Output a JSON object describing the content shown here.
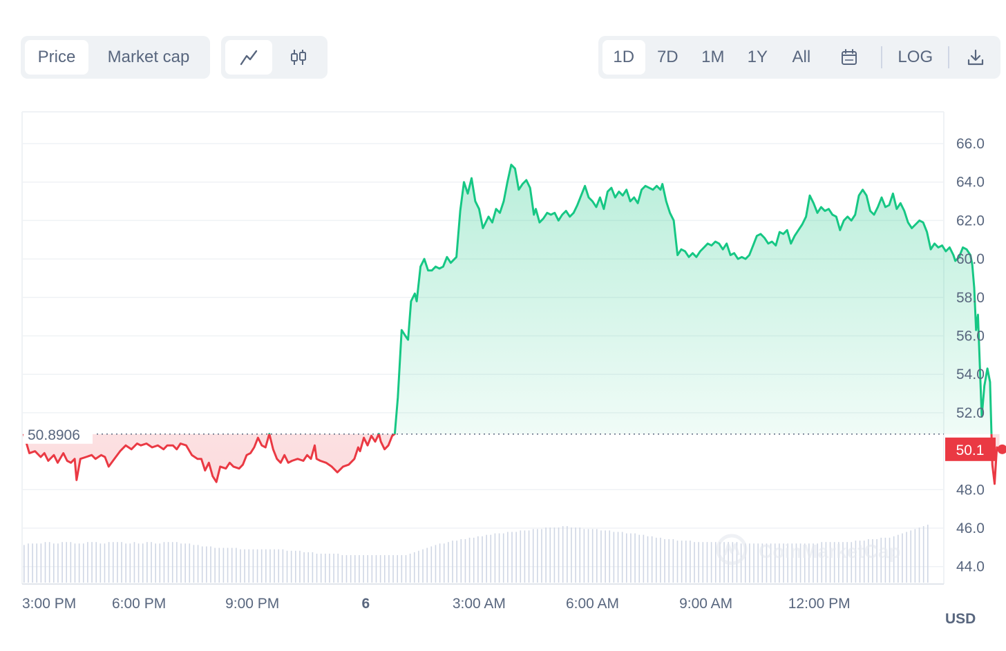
{
  "toolbar": {
    "metric_tabs": [
      "Price",
      "Market cap"
    ],
    "chart_type_icons": [
      "line-chart-icon",
      "candlestick-icon"
    ],
    "range_tabs": [
      "1D",
      "7D",
      "1M",
      "1Y",
      "All"
    ],
    "calendar_icon": "calendar-icon",
    "log_label": "LOG",
    "download_icon": "download-icon"
  },
  "currency_label": "USD",
  "watermark": "CoinMarketCap",
  "colors": {
    "up": "#16c784",
    "down": "#ea3943",
    "grid": "#eff2f5",
    "axis_text": "#58667e",
    "volume": "#cfd6e4"
  },
  "chart_data": {
    "type": "area",
    "title": "",
    "xlabel": "",
    "ylabel": "",
    "ylim": [
      43.2,
      67.7
    ],
    "grid": true,
    "scale": "linear",
    "y_ticks": [
      "66.0",
      "64.0",
      "62.0",
      "60.0",
      "58.0",
      "56.0",
      "54.0",
      "52.0",
      "48.0",
      "46.0",
      "44.0"
    ],
    "x_ticks": [
      {
        "label": "3:00 PM",
        "h": 0
      },
      {
        "label": "6:00 PM",
        "h": 3
      },
      {
        "label": "9:00 PM",
        "h": 6
      },
      {
        "label": "6",
        "h": 9
      },
      {
        "label": "3:00 AM",
        "h": 12
      },
      {
        "label": "6:00 AM",
        "h": 15
      },
      {
        "label": "9:00 AM",
        "h": 18
      },
      {
        "label": "12:00 PM",
        "h": 21
      }
    ],
    "baseline": {
      "value": 50.8906,
      "label": "50.8906"
    },
    "current": {
      "value": 50.1,
      "label": "50.1"
    },
    "series": [
      {
        "name": "Price",
        "points": [
          [
            -0.05,
            50.9
          ],
          [
            0.1,
            49.9
          ],
          [
            0.25,
            50.0
          ],
          [
            0.4,
            49.7
          ],
          [
            0.5,
            49.9
          ],
          [
            0.6,
            49.5
          ],
          [
            0.75,
            49.8
          ],
          [
            0.85,
            49.4
          ],
          [
            1.0,
            49.9
          ],
          [
            1.1,
            49.5
          ],
          [
            1.2,
            49.4
          ],
          [
            1.3,
            49.6
          ],
          [
            1.35,
            48.5
          ],
          [
            1.45,
            49.6
          ],
          [
            1.6,
            49.7
          ],
          [
            1.75,
            49.8
          ],
          [
            1.85,
            49.6
          ],
          [
            2.0,
            49.8
          ],
          [
            2.1,
            49.7
          ],
          [
            2.2,
            49.2
          ],
          [
            2.35,
            49.6
          ],
          [
            2.5,
            50.0
          ],
          [
            2.65,
            50.3
          ],
          [
            2.8,
            50.1
          ],
          [
            2.95,
            50.4
          ],
          [
            3.05,
            50.3
          ],
          [
            3.2,
            50.4
          ],
          [
            3.35,
            50.2
          ],
          [
            3.5,
            50.3
          ],
          [
            3.65,
            50.1
          ],
          [
            3.75,
            50.3
          ],
          [
            3.9,
            50.3
          ],
          [
            4.0,
            50.1
          ],
          [
            4.1,
            50.4
          ],
          [
            4.25,
            50.3
          ],
          [
            4.4,
            49.8
          ],
          [
            4.55,
            49.6
          ],
          [
            4.65,
            49.6
          ],
          [
            4.75,
            49.0
          ],
          [
            4.85,
            49.4
          ],
          [
            4.95,
            48.7
          ],
          [
            5.05,
            48.4
          ],
          [
            5.15,
            49.2
          ],
          [
            5.3,
            49.1
          ],
          [
            5.4,
            49.4
          ],
          [
            5.5,
            49.2
          ],
          [
            5.65,
            49.1
          ],
          [
            5.75,
            49.3
          ],
          [
            5.85,
            49.8
          ],
          [
            5.95,
            49.9
          ],
          [
            6.05,
            50.2
          ],
          [
            6.15,
            50.7
          ],
          [
            6.25,
            50.3
          ],
          [
            6.35,
            50.2
          ],
          [
            6.45,
            50.9
          ],
          [
            6.55,
            50.1
          ],
          [
            6.65,
            49.6
          ],
          [
            6.75,
            49.4
          ],
          [
            6.85,
            49.8
          ],
          [
            6.95,
            49.4
          ],
          [
            7.05,
            49.5
          ],
          [
            7.2,
            49.6
          ],
          [
            7.35,
            49.5
          ],
          [
            7.45,
            49.8
          ],
          [
            7.55,
            49.6
          ],
          [
            7.65,
            50.3
          ],
          [
            7.7,
            49.6
          ],
          [
            7.8,
            49.5
          ],
          [
            7.95,
            49.4
          ],
          [
            8.1,
            49.2
          ],
          [
            8.25,
            48.9
          ],
          [
            8.4,
            49.2
          ],
          [
            8.55,
            49.3
          ],
          [
            8.7,
            49.6
          ],
          [
            8.8,
            50.2
          ],
          [
            8.85,
            50.0
          ],
          [
            8.95,
            50.7
          ],
          [
            9.05,
            50.3
          ],
          [
            9.15,
            50.8
          ],
          [
            9.25,
            50.5
          ],
          [
            9.35,
            50.9
          ],
          [
            9.4,
            50.5
          ],
          [
            9.5,
            50.1
          ],
          [
            9.6,
            50.3
          ],
          [
            9.7,
            50.8
          ],
          [
            9.77,
            50.9
          ],
          [
            9.85,
            52.8
          ],
          [
            9.95,
            56.3
          ],
          [
            10.05,
            56.0
          ],
          [
            10.12,
            55.8
          ],
          [
            10.2,
            57.8
          ],
          [
            10.3,
            58.2
          ],
          [
            10.35,
            57.8
          ],
          [
            10.45,
            59.6
          ],
          [
            10.55,
            60.0
          ],
          [
            10.65,
            59.4
          ],
          [
            10.75,
            59.4
          ],
          [
            10.85,
            59.6
          ],
          [
            10.95,
            59.5
          ],
          [
            11.05,
            59.6
          ],
          [
            11.15,
            60.1
          ],
          [
            11.25,
            59.8
          ],
          [
            11.4,
            60.1
          ],
          [
            11.5,
            62.5
          ],
          [
            11.6,
            64.0
          ],
          [
            11.7,
            63.4
          ],
          [
            11.8,
            64.2
          ],
          [
            11.9,
            63.0
          ],
          [
            12.0,
            62.6
          ],
          [
            12.1,
            61.6
          ],
          [
            12.25,
            62.2
          ],
          [
            12.35,
            61.9
          ],
          [
            12.45,
            62.6
          ],
          [
            12.55,
            62.4
          ],
          [
            12.65,
            63.0
          ],
          [
            12.75,
            64.0
          ],
          [
            12.85,
            64.9
          ],
          [
            12.95,
            64.7
          ],
          [
            13.05,
            63.6
          ],
          [
            13.15,
            63.9
          ],
          [
            13.25,
            64.1
          ],
          [
            13.35,
            63.7
          ],
          [
            13.45,
            62.3
          ],
          [
            13.5,
            62.6
          ],
          [
            13.6,
            61.9
          ],
          [
            13.7,
            62.1
          ],
          [
            13.8,
            62.4
          ],
          [
            13.9,
            62.3
          ],
          [
            14.0,
            62.4
          ],
          [
            14.1,
            62.0
          ],
          [
            14.2,
            62.3
          ],
          [
            14.3,
            62.5
          ],
          [
            14.4,
            62.2
          ],
          [
            14.5,
            62.4
          ],
          [
            14.6,
            62.8
          ],
          [
            14.7,
            63.3
          ],
          [
            14.8,
            63.8
          ],
          [
            14.9,
            63.2
          ],
          [
            15.0,
            63.0
          ],
          [
            15.1,
            62.7
          ],
          [
            15.2,
            63.2
          ],
          [
            15.3,
            62.6
          ],
          [
            15.4,
            63.5
          ],
          [
            15.5,
            63.7
          ],
          [
            15.6,
            63.2
          ],
          [
            15.7,
            63.5
          ],
          [
            15.8,
            63.3
          ],
          [
            15.9,
            63.6
          ],
          [
            16.0,
            63.0
          ],
          [
            16.1,
            63.2
          ],
          [
            16.2,
            62.9
          ],
          [
            16.3,
            63.6
          ],
          [
            16.4,
            63.8
          ],
          [
            16.5,
            63.7
          ],
          [
            16.6,
            63.6
          ],
          [
            16.7,
            63.8
          ],
          [
            16.8,
            63.6
          ],
          [
            16.85,
            63.9
          ],
          [
            16.95,
            63.0
          ],
          [
            17.05,
            62.4
          ],
          [
            17.15,
            62.0
          ],
          [
            17.25,
            60.2
          ],
          [
            17.35,
            60.5
          ],
          [
            17.45,
            60.4
          ],
          [
            17.55,
            60.1
          ],
          [
            17.65,
            60.3
          ],
          [
            17.75,
            60.1
          ],
          [
            17.85,
            60.4
          ],
          [
            17.95,
            60.6
          ],
          [
            18.05,
            60.8
          ],
          [
            18.15,
            60.7
          ],
          [
            18.25,
            60.9
          ],
          [
            18.35,
            60.8
          ],
          [
            18.45,
            60.5
          ],
          [
            18.55,
            60.8
          ],
          [
            18.65,
            60.2
          ],
          [
            18.75,
            60.3
          ],
          [
            18.85,
            60.0
          ],
          [
            18.95,
            60.1
          ],
          [
            19.05,
            60.0
          ],
          [
            19.15,
            60.2
          ],
          [
            19.25,
            60.7
          ],
          [
            19.35,
            61.2
          ],
          [
            19.45,
            61.3
          ],
          [
            19.55,
            61.1
          ],
          [
            19.65,
            60.8
          ],
          [
            19.75,
            60.9
          ],
          [
            19.85,
            60.7
          ],
          [
            19.95,
            61.4
          ],
          [
            20.05,
            61.3
          ],
          [
            20.15,
            61.5
          ],
          [
            20.25,
            60.8
          ],
          [
            20.35,
            61.2
          ],
          [
            20.45,
            61.5
          ],
          [
            20.55,
            61.8
          ],
          [
            20.65,
            62.2
          ],
          [
            20.75,
            63.3
          ],
          [
            20.85,
            62.9
          ],
          [
            20.95,
            62.4
          ],
          [
            21.05,
            62.7
          ],
          [
            21.15,
            62.5
          ],
          [
            21.25,
            62.6
          ],
          [
            21.35,
            62.3
          ],
          [
            21.45,
            62.2
          ],
          [
            21.55,
            61.5
          ],
          [
            21.65,
            62.0
          ],
          [
            21.75,
            62.2
          ],
          [
            21.85,
            62.0
          ],
          [
            21.95,
            62.3
          ],
          [
            22.05,
            63.3
          ],
          [
            22.15,
            63.6
          ],
          [
            22.25,
            63.3
          ],
          [
            22.35,
            62.5
          ],
          [
            22.45,
            62.3
          ],
          [
            22.55,
            62.7
          ],
          [
            22.65,
            63.2
          ],
          [
            22.75,
            62.7
          ],
          [
            22.85,
            62.8
          ],
          [
            22.95,
            63.4
          ],
          [
            23.05,
            62.6
          ],
          [
            23.15,
            62.9
          ],
          [
            23.25,
            62.5
          ],
          [
            23.35,
            61.9
          ],
          [
            23.45,
            61.6
          ],
          [
            23.55,
            61.8
          ],
          [
            23.65,
            62.0
          ],
          [
            23.75,
            61.9
          ],
          [
            23.85,
            61.4
          ],
          [
            23.95,
            60.5
          ],
          [
            24.05,
            60.8
          ],
          [
            24.15,
            60.6
          ],
          [
            24.25,
            60.7
          ],
          [
            24.35,
            60.4
          ],
          [
            24.45,
            60.6
          ],
          [
            24.55,
            60.2
          ],
          [
            24.6,
            59.9
          ],
          [
            24.7,
            60.1
          ],
          [
            24.8,
            60.6
          ],
          [
            24.9,
            60.5
          ],
          [
            25.0,
            60.2
          ],
          [
            25.05,
            59.7
          ],
          [
            25.1,
            58.5
          ],
          [
            25.15,
            56.3
          ],
          [
            25.2,
            57.1
          ],
          [
            25.25,
            54.4
          ],
          [
            25.3,
            51.8
          ],
          [
            25.37,
            53.4
          ],
          [
            25.45,
            54.3
          ],
          [
            25.52,
            53.6
          ],
          [
            25.58,
            49.3
          ],
          [
            25.64,
            48.3
          ],
          [
            25.7,
            50.2
          ],
          [
            25.77,
            50.1
          ]
        ]
      }
    ],
    "volume_heights": [
      26,
      27,
      27,
      27,
      27,
      28,
      28,
      27,
      27,
      28,
      28,
      28,
      27,
      27,
      27,
      28,
      28,
      28,
      27,
      27,
      28,
      28,
      28,
      28,
      27,
      27,
      28,
      27,
      27,
      28,
      28,
      27,
      27,
      28,
      28,
      28,
      28,
      27,
      27,
      27,
      26,
      26,
      25,
      25,
      25,
      24,
      24,
      24,
      24,
      24,
      24,
      23,
      23,
      23,
      23,
      23,
      23,
      23,
      23,
      23,
      23,
      23,
      22,
      22,
      22,
      22,
      21,
      21,
      21,
      20,
      20,
      20,
      20,
      20,
      20,
      19,
      19,
      19,
      19,
      19,
      19,
      19,
      19,
      19,
      19,
      19,
      19,
      19,
      19,
      19,
      19,
      20,
      21,
      22,
      23,
      24,
      25,
      26,
      27,
      27,
      28,
      29,
      29,
      30,
      30,
      31,
      31,
      32,
      32,
      33,
      33,
      34,
      34,
      34,
      35,
      35,
      35,
      36,
      36,
      36,
      37,
      37,
      37,
      38,
      38,
      38,
      38,
      39,
      39,
      38,
      38,
      38,
      37,
      37,
      37,
      37,
      36,
      36,
      36,
      35,
      35,
      35,
      34,
      34,
      34,
      33,
      33,
      32,
      32,
      31,
      31,
      30,
      30,
      30,
      29,
      29,
      29,
      29,
      28,
      28,
      28,
      28,
      28,
      28,
      28,
      28,
      28,
      28,
      28,
      27,
      27,
      27,
      27,
      27,
      27,
      27,
      27,
      27,
      27,
      27,
      27,
      27,
      27,
      27,
      27,
      27,
      27,
      27,
      28,
      28,
      28,
      28,
      28,
      28,
      28,
      28,
      29,
      29,
      29,
      30,
      30,
      30,
      31,
      31,
      31,
      32,
      33,
      34,
      35,
      36,
      37,
      38,
      39,
      40
    ]
  }
}
